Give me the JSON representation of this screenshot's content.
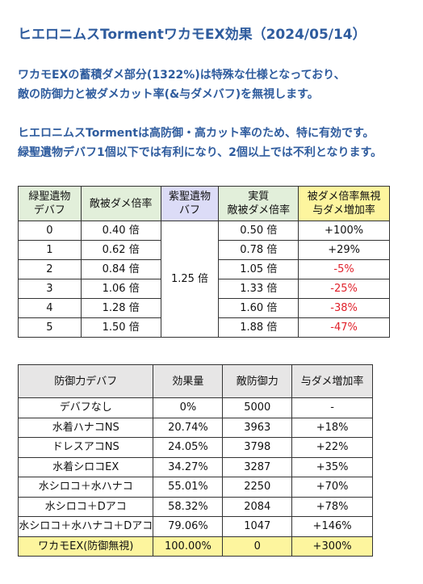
{
  "header": {
    "title": "ヒエロニムスTormentワカモEX効果（2024/05/14）"
  },
  "paragraphs": [
    [
      "ワカモEXの蓄積ダメ部分(1322%)は特殊な仕様となっており、",
      "敵の防御力と被ダメカット率(&与ダメバフ)を無視します。"
    ],
    [
      "ヒエロニムスTormentは高防御・高カット率のため、特に有効です。",
      "緑聖遺物デバフ1個以下では有利になり、2個以上では不利となります。"
    ]
  ],
  "table1": {
    "headers": [
      "緑聖遺物\nデバフ",
      "敵被ダメ倍率",
      "紫聖遺物\nバフ",
      "実質\n敵被ダメ倍率",
      "被ダメ倍率無視\n与ダメ増加率"
    ],
    "shared": "1.25 倍",
    "rows": [
      [
        "0",
        "0.40 倍",
        "0.50 倍",
        "+100%"
      ],
      [
        "1",
        "0.62 倍",
        "0.78 倍",
        "+29%"
      ],
      [
        "2",
        "0.84 倍",
        "1.05 倍",
        "-5%"
      ],
      [
        "3",
        "1.06 倍",
        "1.33 倍",
        "-25%"
      ],
      [
        "4",
        "1.28 倍",
        "1.60 倍",
        "-38%"
      ],
      [
        "5",
        "1.50 倍",
        "1.88 倍",
        "-47%"
      ]
    ]
  },
  "table2": {
    "headers": [
      "防御力デバフ",
      "効果量",
      "敵防御力",
      "与ダメ増加率"
    ],
    "rows": [
      [
        "デバフなし",
        "0%",
        "5000",
        "-"
      ],
      [
        "水着ハナコNS",
        "20.74%",
        "3963",
        "+18%"
      ],
      [
        "ドレスアコNS",
        "24.05%",
        "3798",
        "+22%"
      ],
      [
        "水着シロコEX",
        "34.27%",
        "3287",
        "+35%"
      ],
      [
        "水シロコ＋水ハナコ",
        "55.01%",
        "2250",
        "+70%"
      ],
      [
        "水シロコ＋Dアコ",
        "58.32%",
        "2084",
        "+78%"
      ],
      [
        "水シロコ＋水ハナコ＋Dアコ",
        "79.06%",
        "1047",
        "+146%"
      ],
      [
        "ワカモEX(防御無視)",
        "100.00%",
        "0",
        "+300%"
      ]
    ]
  }
}
